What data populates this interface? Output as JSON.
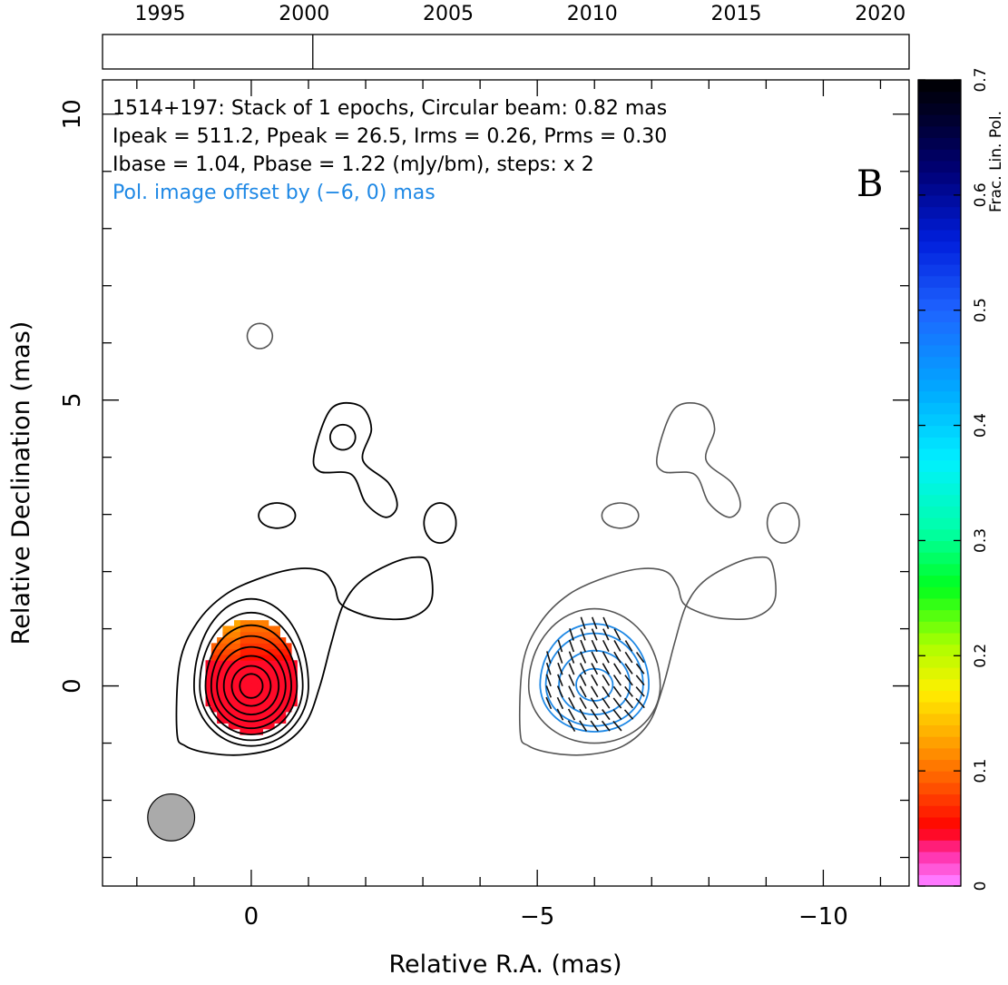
{
  "chart_data": {
    "type": "contour",
    "panel_label": "B",
    "annotations": {
      "line1": "1514+197: Stack of 1 epochs, Circular beam: 0.82 mas",
      "line2": "Ipeak = 511.2, Ppeak = 26.5, Irms = 0.26, Prms = 0.30",
      "line3": "Ibase = 1.04, Pbase = 1.22 (mJy/bm), steps: x 2",
      "line4": "Pol. image offset by (−6, 0) mas"
    },
    "xlabel": "Relative R.A. (mas)",
    "ylabel": "Relative Declination (mas)",
    "xlim": [
      2.6,
      -11.5
    ],
    "ylim": [
      -3.5,
      10.6
    ],
    "x_ticks": [
      0,
      -5,
      -10
    ],
    "x_tick_labels": [
      "0",
      "−5",
      "−10"
    ],
    "y_ticks": [
      0,
      5,
      10
    ],
    "y_tick_labels": [
      "0",
      "5",
      "10"
    ],
    "epoch_axis": {
      "range": [
        1993,
        2021
      ],
      "ticks": [
        1995,
        2000,
        2005,
        2010,
        2015,
        2020
      ],
      "epochs": [
        2000.3
      ]
    },
    "beam": {
      "ra": 1.4,
      "dec": -2.3,
      "diameter_mas": 0.82
    },
    "stokes_i_levels_rel": [
      1.04,
      2.08,
      4.16,
      8.32,
      16.6,
      33.3,
      66.6,
      133,
      266
    ],
    "fractional_polarization_peak": 0.05,
    "colorbar": {
      "label": "Frac. Lin. Pol.",
      "range": [
        0,
        0.7
      ],
      "ticks": [
        0,
        0.1,
        0.2,
        0.3,
        0.4,
        0.5,
        0.6,
        0.7
      ],
      "tick_labels": [
        "0",
        "0.1",
        "0.2",
        "0.3",
        "0.4",
        "0.5",
        "0.6",
        "0.7"
      ]
    },
    "colors": {
      "stokes_i_contours": "#000000",
      "offset_stokes_i_contours": "#555555",
      "polarization_contours": "#1e88e5",
      "annotation_blue": "#1e88e5",
      "beam_fill": "#aaaaaa"
    }
  }
}
